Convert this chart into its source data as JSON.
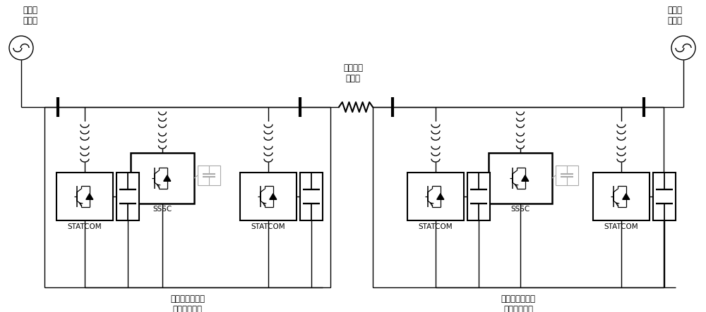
{
  "bg_color": "#ffffff",
  "line_color": "#000000",
  "gray_color": "#aaaaaa",
  "text_color": "#000000",
  "texts": {
    "send_ac": "送端交\n流系统",
    "recv_ac": "受端交\n流系统",
    "transmission": "待调谐输\n电线路",
    "send_label": "送端同步补偿式\n柔性调谐装置",
    "recv_label": "受端同步补偿式\n柔性调谐装置",
    "sssc1": "SSSC",
    "sssc2": "SSSC",
    "statcom1": "STATCOM",
    "statcom2": "STATCOM",
    "statcom3": "STATCOM",
    "statcom4": "STATCOM"
  },
  "figsize": [
    10.0,
    4.43
  ],
  "dpi": 100
}
